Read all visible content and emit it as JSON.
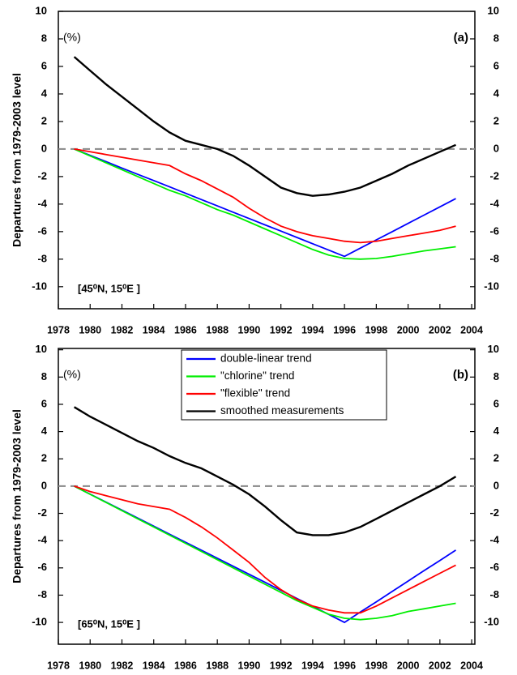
{
  "chart_data": [
    {
      "type": "line",
      "panel_label": "(a)",
      "unit_label": "(%)",
      "location": "[45⁰N, 15⁰E ]",
      "y_label": "Departures from 1979-2003 level",
      "x": [
        1979,
        1980,
        1981,
        1982,
        1983,
        1984,
        1985,
        1986,
        1987,
        1988,
        1989,
        1990,
        1991,
        1992,
        1993,
        1994,
        1995,
        1996,
        1997,
        1998,
        1999,
        2000,
        2001,
        2002,
        2003
      ],
      "xlim": [
        1978,
        2004.2
      ],
      "xticks": [
        1978,
        1980,
        1982,
        1984,
        1986,
        1988,
        1990,
        1992,
        1994,
        1996,
        1998,
        2000,
        2002,
        2004
      ],
      "ylim": [
        -11.6,
        10
      ],
      "yticks": [
        -10,
        -8,
        -6,
        -4,
        -2,
        0,
        2,
        4,
        6,
        8,
        10
      ],
      "reference_line": 0,
      "series": [
        {
          "color": "#0000ff",
          "values": [
            0,
            -0.46,
            -0.92,
            -1.38,
            -1.84,
            -2.29,
            -2.75,
            -3.21,
            -3.67,
            -4.13,
            -4.59,
            -5.05,
            -5.51,
            -5.96,
            -6.42,
            -6.88,
            -7.34,
            -7.8,
            -7.2,
            -6.6,
            -6.0,
            -5.4,
            -4.8,
            -4.2,
            -3.6
          ]
        },
        {
          "color": "#00ee00",
          "values": [
            0,
            -0.5,
            -1.0,
            -1.5,
            -2.0,
            -2.5,
            -3.0,
            -3.4,
            -3.9,
            -4.4,
            -4.8,
            -5.3,
            -5.8,
            -6.3,
            -6.8,
            -7.3,
            -7.7,
            -7.95,
            -8.0,
            -7.95,
            -7.8,
            -7.6,
            -7.4,
            -7.25,
            -7.1
          ]
        },
        {
          "color": "#ff0000",
          "values": [
            0,
            -0.2,
            -0.4,
            -0.6,
            -0.8,
            -1.0,
            -1.2,
            -1.8,
            -2.3,
            -2.9,
            -3.5,
            -4.3,
            -5.0,
            -5.6,
            -6.0,
            -6.3,
            -6.5,
            -6.7,
            -6.8,
            -6.7,
            -6.5,
            -6.3,
            -6.1,
            -5.9,
            -5.6
          ]
        },
        {
          "color": "#000000",
          "values": [
            6.7,
            5.7,
            4.7,
            3.8,
            2.9,
            2.0,
            1.2,
            0.6,
            0.3,
            0.0,
            -0.5,
            -1.2,
            -2.0,
            -2.8,
            -3.2,
            -3.4,
            -3.3,
            -3.1,
            -2.8,
            -2.3,
            -1.8,
            -1.2,
            -0.7,
            -0.2,
            0.3
          ]
        }
      ]
    },
    {
      "type": "line",
      "panel_label": "(b)",
      "unit_label": "(%)",
      "location": "[65⁰N, 15⁰E ]",
      "y_label": "Departures from 1979-2003 level",
      "x": [
        1979,
        1980,
        1981,
        1982,
        1983,
        1984,
        1985,
        1986,
        1987,
        1988,
        1989,
        1990,
        1991,
        1992,
        1993,
        1994,
        1995,
        1996,
        1997,
        1998,
        1999,
        2000,
        2001,
        2002,
        2003
      ],
      "xlim": [
        1978,
        2004.2
      ],
      "xticks": [
        1978,
        1980,
        1982,
        1984,
        1986,
        1988,
        1990,
        1992,
        1994,
        1996,
        1998,
        2000,
        2002,
        2004
      ],
      "ylim": [
        -11.6,
        10.1
      ],
      "yticks": [
        -10,
        -8,
        -6,
        -4,
        -2,
        0,
        2,
        4,
        6,
        8,
        10
      ],
      "reference_line": 0,
      "legend": "upper center",
      "series": [
        {
          "name": "double-linear trend",
          "color": "#0000ff",
          "values": [
            0,
            -0.59,
            -1.18,
            -1.76,
            -2.35,
            -2.94,
            -3.53,
            -4.12,
            -4.71,
            -5.29,
            -5.88,
            -6.47,
            -7.06,
            -7.65,
            -8.24,
            -8.82,
            -9.41,
            -10.0,
            -9.24,
            -8.49,
            -7.73,
            -6.97,
            -6.21,
            -5.46,
            -4.7
          ]
        },
        {
          "name": "\"chlorine\" trend",
          "color": "#00ee00",
          "values": [
            0,
            -0.6,
            -1.2,
            -1.8,
            -2.4,
            -3.0,
            -3.6,
            -4.2,
            -4.8,
            -5.4,
            -6.0,
            -6.6,
            -7.2,
            -7.8,
            -8.4,
            -8.9,
            -9.4,
            -9.7,
            -9.8,
            -9.7,
            -9.5,
            -9.2,
            -9.0,
            -8.8,
            -8.6
          ]
        },
        {
          "name": "\"flexible\" trend",
          "color": "#ff0000",
          "values": [
            0,
            -0.4,
            -0.7,
            -1.0,
            -1.3,
            -1.5,
            -1.7,
            -2.3,
            -3.0,
            -3.8,
            -4.7,
            -5.6,
            -6.7,
            -7.6,
            -8.3,
            -8.8,
            -9.1,
            -9.3,
            -9.3,
            -8.8,
            -8.2,
            -7.6,
            -7.0,
            -6.4,
            -5.8
          ]
        },
        {
          "name": "smoothed measurements",
          "color": "#000000",
          "values": [
            5.8,
            5.1,
            4.5,
            3.9,
            3.3,
            2.8,
            2.2,
            1.7,
            1.3,
            0.7,
            0.1,
            -0.6,
            -1.5,
            -2.5,
            -3.4,
            -3.6,
            -3.6,
            -3.4,
            -3.0,
            -2.4,
            -1.8,
            -1.2,
            -0.6,
            0.0,
            0.7
          ]
        }
      ]
    }
  ]
}
